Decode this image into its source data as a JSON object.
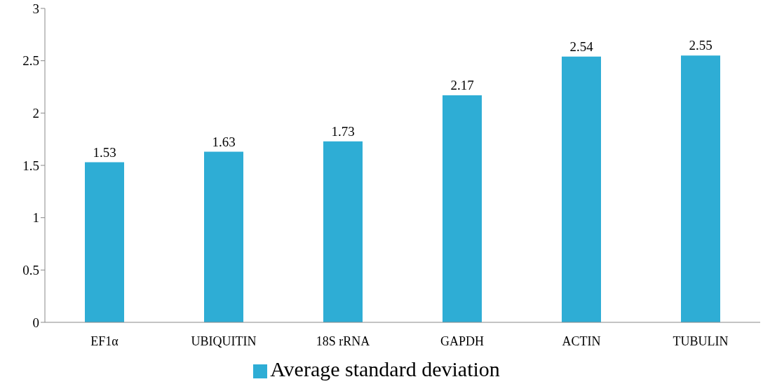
{
  "chart_data": {
    "type": "bar",
    "categories": [
      "EF1α",
      "UBIQUITIN",
      "18S rRNA",
      "GAPDH",
      "ACTIN",
      "TUBULIN"
    ],
    "series": [
      {
        "name": "Average standard deviation",
        "color": "#2eadd5",
        "values": [
          1.53,
          1.63,
          1.73,
          2.17,
          2.54,
          2.55
        ]
      }
    ],
    "ylim": [
      0,
      3
    ],
    "yticks": [
      0,
      0.5,
      1,
      1.5,
      2,
      2.5,
      3
    ],
    "data_labels": true,
    "legend": "bottom"
  }
}
